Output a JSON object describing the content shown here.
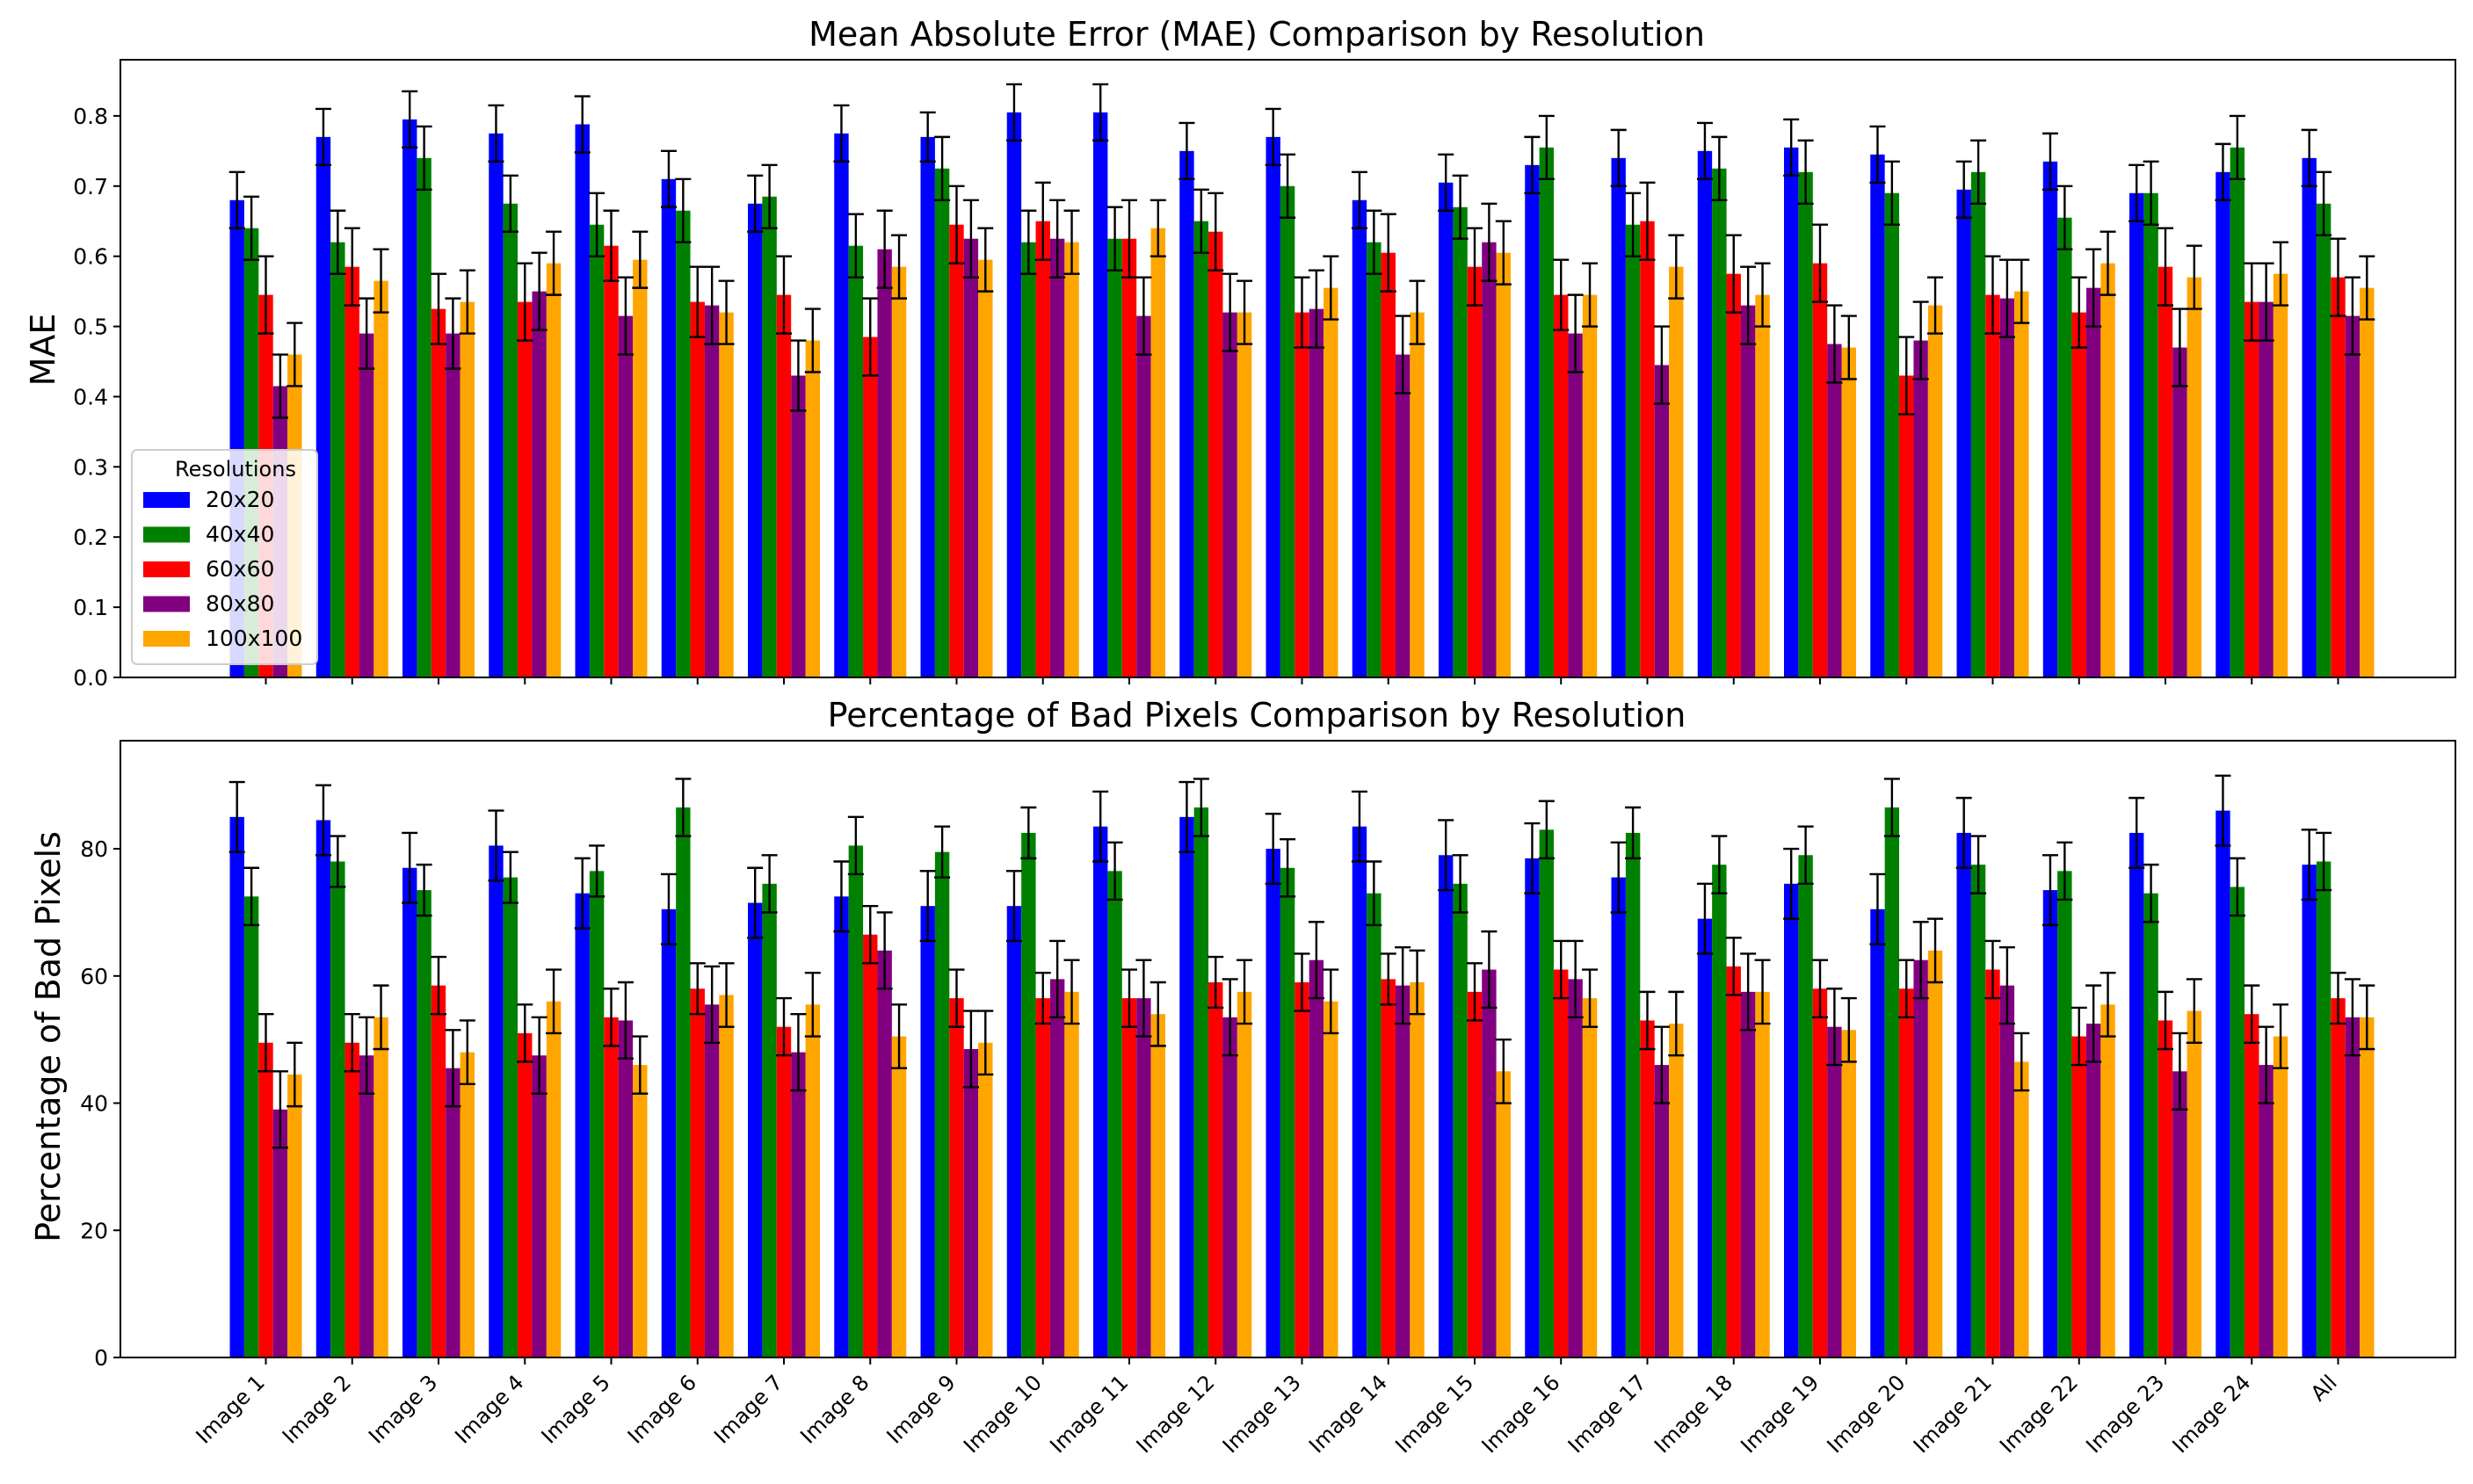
{
  "chart_data": [
    {
      "type": "bar",
      "title": "Mean Absolute Error (MAE) Comparison by Resolution",
      "xlabel": "",
      "ylabel": "MAE",
      "ylim": [
        0,
        0.88
      ],
      "yticks": [
        "0.0",
        "0.1",
        "0.2",
        "0.3",
        "0.4",
        "0.5",
        "0.6",
        "0.7",
        "0.8"
      ],
      "error_bars": true,
      "legend": {
        "title": "Resolutions",
        "position": "center-left"
      },
      "categories": [
        "Image 1",
        "Image 2",
        "Image 3",
        "Image 4",
        "Image 5",
        "Image 6",
        "Image 7",
        "Image 8",
        "Image 9",
        "Image 10",
        "Image 11",
        "Image 12",
        "Image 13",
        "Image 14",
        "Image 15",
        "Image 16",
        "Image 17",
        "Image 18",
        "Image 19",
        "Image 20",
        "Image 21",
        "Image 22",
        "Image 23",
        "Image 24",
        "All"
      ],
      "series": [
        {
          "name": "20x20",
          "color": "#0000ff",
          "values": [
            0.68,
            0.77,
            0.795,
            0.775,
            0.788,
            0.71,
            0.675,
            0.775,
            0.77,
            0.805,
            0.805,
            0.75,
            0.77,
            0.68,
            0.705,
            0.73,
            0.74,
            0.75,
            0.755,
            0.745,
            0.695,
            0.735,
            0.69,
            0.72,
            0.74
          ],
          "errors": [
            0.04,
            0.04,
            0.04,
            0.04,
            0.04,
            0.04,
            0.04,
            0.04,
            0.035,
            0.04,
            0.04,
            0.04,
            0.04,
            0.04,
            0.04,
            0.04,
            0.04,
            0.04,
            0.04,
            0.04,
            0.04,
            0.04,
            0.04,
            0.04,
            0.04
          ]
        },
        {
          "name": "40x40",
          "color": "#008000",
          "values": [
            0.64,
            0.62,
            0.74,
            0.675,
            0.645,
            0.665,
            0.685,
            0.615,
            0.725,
            0.62,
            0.625,
            0.65,
            0.7,
            0.62,
            0.67,
            0.755,
            0.645,
            0.725,
            0.72,
            0.69,
            0.72,
            0.655,
            0.69,
            0.755,
            0.675
          ],
          "errors": [
            0.045,
            0.045,
            0.045,
            0.04,
            0.045,
            0.045,
            0.045,
            0.045,
            0.045,
            0.045,
            0.045,
            0.045,
            0.045,
            0.045,
            0.045,
            0.045,
            0.045,
            0.045,
            0.045,
            0.045,
            0.045,
            0.045,
            0.045,
            0.045,
            0.045
          ]
        },
        {
          "name": "60x60",
          "color": "#ff0000",
          "values": [
            0.545,
            0.585,
            0.525,
            0.535,
            0.615,
            0.535,
            0.545,
            0.485,
            0.645,
            0.65,
            0.625,
            0.635,
            0.52,
            0.605,
            0.585,
            0.545,
            0.65,
            0.575,
            0.59,
            0.43,
            0.545,
            0.52,
            0.585,
            0.535,
            0.57
          ],
          "errors": [
            0.055,
            0.055,
            0.05,
            0.055,
            0.05,
            0.05,
            0.055,
            0.055,
            0.055,
            0.055,
            0.055,
            0.055,
            0.05,
            0.055,
            0.055,
            0.05,
            0.055,
            0.055,
            0.055,
            0.055,
            0.055,
            0.05,
            0.055,
            0.055,
            0.055
          ]
        },
        {
          "name": "80x80",
          "color": "#800080",
          "values": [
            0.415,
            0.49,
            0.49,
            0.55,
            0.515,
            0.53,
            0.43,
            0.61,
            0.625,
            0.625,
            0.515,
            0.52,
            0.525,
            0.46,
            0.62,
            0.49,
            0.445,
            0.53,
            0.475,
            0.48,
            0.54,
            0.555,
            0.47,
            0.535,
            0.515
          ],
          "errors": [
            0.045,
            0.05,
            0.05,
            0.055,
            0.055,
            0.055,
            0.05,
            0.055,
            0.055,
            0.055,
            0.055,
            0.055,
            0.055,
            0.055,
            0.055,
            0.055,
            0.055,
            0.055,
            0.055,
            0.055,
            0.055,
            0.055,
            0.055,
            0.055,
            0.055
          ]
        },
        {
          "name": "100x100",
          "color": "#ffa500",
          "values": [
            0.46,
            0.565,
            0.535,
            0.59,
            0.595,
            0.52,
            0.48,
            0.585,
            0.595,
            0.62,
            0.64,
            0.52,
            0.555,
            0.52,
            0.605,
            0.545,
            0.585,
            0.545,
            0.47,
            0.53,
            0.55,
            0.59,
            0.57,
            0.575,
            0.555
          ],
          "errors": [
            0.045,
            0.045,
            0.045,
            0.045,
            0.04,
            0.045,
            0.045,
            0.045,
            0.045,
            0.045,
            0.04,
            0.045,
            0.045,
            0.045,
            0.045,
            0.045,
            0.045,
            0.045,
            0.045,
            0.04,
            0.045,
            0.045,
            0.045,
            0.045,
            0.045
          ]
        }
      ]
    },
    {
      "type": "bar",
      "title": "Percentage of Bad Pixels Comparison by Resolution",
      "xlabel": "",
      "ylabel": "Percentage of Bad Pixels",
      "ylim": [
        0,
        97
      ],
      "yticks": [
        "0",
        "20",
        "40",
        "60",
        "80"
      ],
      "error_bars": true,
      "categories": [
        "Image 1",
        "Image 2",
        "Image 3",
        "Image 4",
        "Image 5",
        "Image 6",
        "Image 7",
        "Image 8",
        "Image 9",
        "Image 10",
        "Image 11",
        "Image 12",
        "Image 13",
        "Image 14",
        "Image 15",
        "Image 16",
        "Image 17",
        "Image 18",
        "Image 19",
        "Image 20",
        "Image 21",
        "Image 22",
        "Image 23",
        "Image 24",
        "All"
      ],
      "series": [
        {
          "name": "20x20",
          "color": "#0000ff",
          "values": [
            85,
            84.5,
            77,
            80.5,
            73,
            70.5,
            71.5,
            72.5,
            71,
            71,
            83.5,
            85,
            80,
            83.5,
            79,
            78.5,
            75.5,
            69,
            74.5,
            70.5,
            82.5,
            73.5,
            82.5,
            86,
            77.5
          ],
          "errors": [
            5.5,
            5.5,
            5.5,
            5.5,
            5.5,
            5.5,
            5.5,
            5.5,
            5.5,
            5.5,
            5.5,
            5.5,
            5.5,
            5.5,
            5.5,
            5.5,
            5.5,
            5.5,
            5.5,
            5.5,
            5.5,
            5.5,
            5.5,
            5.5,
            5.5
          ]
        },
        {
          "name": "40x40",
          "color": "#008000",
          "values": [
            72.5,
            78,
            73.5,
            75.5,
            76.5,
            86.5,
            74.5,
            80.5,
            79.5,
            82.5,
            76.5,
            86.5,
            77,
            73,
            74.5,
            83,
            82.5,
            77.5,
            79,
            86.5,
            77.5,
            76.5,
            73,
            74,
            78
          ],
          "errors": [
            4.5,
            4,
            4,
            4,
            4,
            4.5,
            4.5,
            4.5,
            4,
            4,
            4.5,
            4.5,
            4.5,
            5,
            4.5,
            4.5,
            4,
            4.5,
            4.5,
            4.5,
            4.5,
            4.5,
            4.5,
            4.5,
            4.5
          ]
        },
        {
          "name": "60x60",
          "color": "#ff0000",
          "values": [
            49.5,
            49.5,
            58.5,
            51,
            53.5,
            58,
            52,
            66.5,
            56.5,
            56.5,
            56.5,
            59,
            59,
            59.5,
            57.5,
            61,
            53,
            61.5,
            58,
            58,
            61,
            50.5,
            53,
            54,
            56.5
          ],
          "errors": [
            4.5,
            4.5,
            4.5,
            4.5,
            4.5,
            4,
            4.5,
            4.5,
            4.5,
            4,
            4.5,
            4,
            4.5,
            4,
            4.5,
            4.5,
            4.5,
            4.5,
            4.5,
            4.5,
            4.5,
            4.5,
            4.5,
            4.5,
            4
          ]
        },
        {
          "name": "80x80",
          "color": "#800080",
          "values": [
            39,
            47.5,
            45.5,
            47.5,
            53,
            55.5,
            48,
            64,
            48.5,
            59.5,
            56.5,
            53.5,
            62.5,
            58.5,
            61,
            59.5,
            46,
            57.5,
            52,
            62.5,
            58.5,
            52.5,
            45,
            46,
            53.5
          ],
          "errors": [
            6,
            6,
            6,
            6,
            6,
            6,
            6,
            6,
            6,
            6,
            6,
            6,
            6,
            6,
            6,
            6,
            6,
            6,
            6,
            6,
            6,
            6,
            6,
            6,
            6
          ]
        },
        {
          "name": "100x100",
          "color": "#ffa500",
          "values": [
            44.5,
            53.5,
            48,
            56,
            46,
            57,
            55.5,
            50.5,
            49.5,
            57.5,
            54,
            57.5,
            56,
            59,
            45,
            56.5,
            52.5,
            57.5,
            51.5,
            64,
            46.5,
            55.5,
            54.5,
            50.5,
            53.5
          ],
          "errors": [
            5,
            5,
            5,
            5,
            4.5,
            5,
            5,
            5,
            5,
            5,
            5,
            5,
            5,
            5,
            5,
            4.5,
            5,
            5,
            5,
            5,
            4.5,
            5,
            5,
            5,
            5
          ]
        }
      ]
    }
  ]
}
